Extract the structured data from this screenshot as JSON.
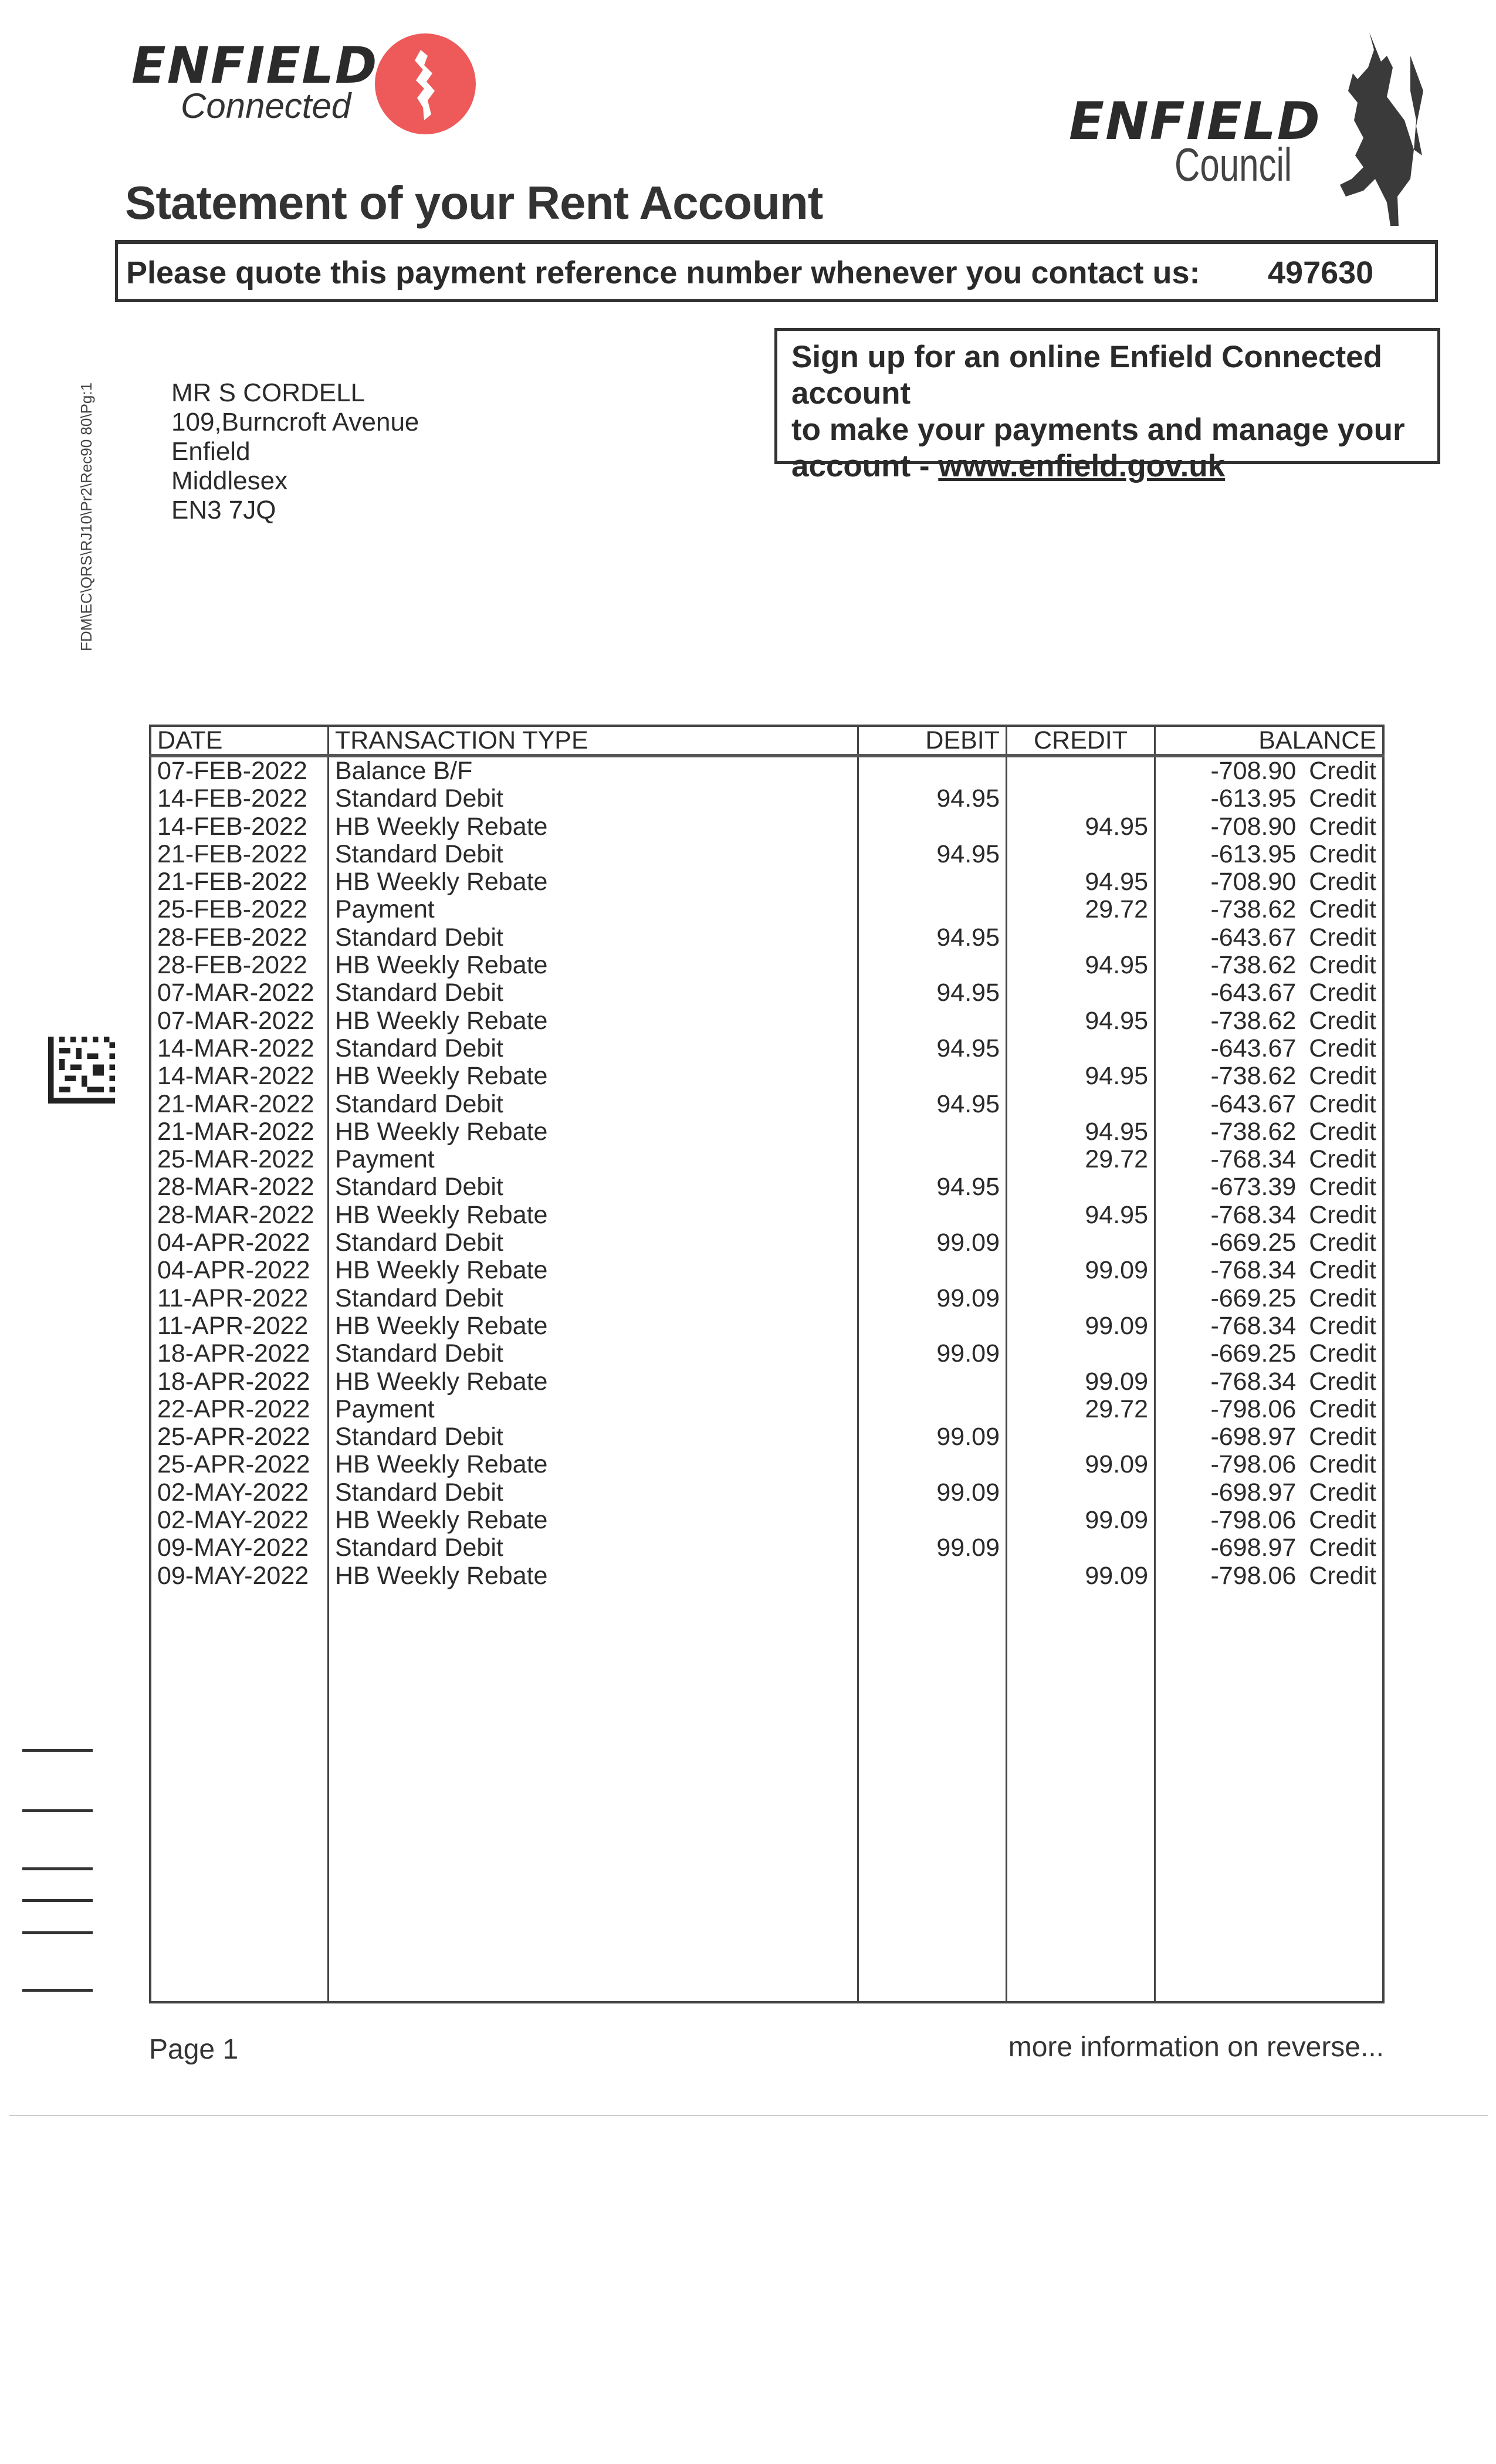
{
  "logos": {
    "connected": {
      "line1": "ENFIELD",
      "line2": "Connected",
      "circle_color": "#ee5a5a"
    },
    "council": {
      "line1": "ENFIELD",
      "line2": "Council"
    }
  },
  "title": "Statement of your Rent Account",
  "reference": {
    "label": "Please quote this payment reference number whenever you contact us:",
    "number": "497630"
  },
  "signup": {
    "line1": "Sign up for an online Enfield Connected account",
    "line2": "to make your payments and manage your",
    "line3_prefix": "account - ",
    "link": "www.enfield.gov.uk"
  },
  "address": [
    "MR S CORDELL",
    "109,Burncroft Avenue",
    "Enfield",
    "Middlesex",
    "EN3 7JQ"
  ],
  "side_code": "FDM\\EC\\QRS\\RJ10\\Pr2\\Rec90 80\\Pg:1",
  "table": {
    "headers": {
      "date": "DATE",
      "type": "TRANSACTION TYPE",
      "debit": "DEBIT",
      "credit": "CREDIT",
      "balance": "BALANCE"
    },
    "rows": [
      {
        "date": "07-FEB-2022",
        "type": "Balance B/F",
        "debit": "",
        "credit": "",
        "balance": "-708.90",
        "status": "Credit"
      },
      {
        "date": "14-FEB-2022",
        "type": "Standard Debit",
        "debit": "94.95",
        "credit": "",
        "balance": "-613.95",
        "status": "Credit"
      },
      {
        "date": "14-FEB-2022",
        "type": "HB Weekly Rebate",
        "debit": "",
        "credit": "94.95",
        "balance": "-708.90",
        "status": "Credit"
      },
      {
        "date": "21-FEB-2022",
        "type": "Standard Debit",
        "debit": "94.95",
        "credit": "",
        "balance": "-613.95",
        "status": "Credit"
      },
      {
        "date": "21-FEB-2022",
        "type": "HB Weekly Rebate",
        "debit": "",
        "credit": "94.95",
        "balance": "-708.90",
        "status": "Credit"
      },
      {
        "date": "25-FEB-2022",
        "type": "Payment",
        "debit": "",
        "credit": "29.72",
        "balance": "-738.62",
        "status": "Credit"
      },
      {
        "date": "28-FEB-2022",
        "type": "Standard Debit",
        "debit": "94.95",
        "credit": "",
        "balance": "-643.67",
        "status": "Credit"
      },
      {
        "date": "28-FEB-2022",
        "type": "HB Weekly Rebate",
        "debit": "",
        "credit": "94.95",
        "balance": "-738.62",
        "status": "Credit"
      },
      {
        "date": "07-MAR-2022",
        "type": "Standard Debit",
        "debit": "94.95",
        "credit": "",
        "balance": "-643.67",
        "status": "Credit"
      },
      {
        "date": "07-MAR-2022",
        "type": "HB Weekly Rebate",
        "debit": "",
        "credit": "94.95",
        "balance": "-738.62",
        "status": "Credit"
      },
      {
        "date": "14-MAR-2022",
        "type": "Standard Debit",
        "debit": "94.95",
        "credit": "",
        "balance": "-643.67",
        "status": "Credit"
      },
      {
        "date": "14-MAR-2022",
        "type": "HB Weekly Rebate",
        "debit": "",
        "credit": "94.95",
        "balance": "-738.62",
        "status": "Credit"
      },
      {
        "date": "21-MAR-2022",
        "type": "Standard Debit",
        "debit": "94.95",
        "credit": "",
        "balance": "-643.67",
        "status": "Credit"
      },
      {
        "date": "21-MAR-2022",
        "type": "HB Weekly Rebate",
        "debit": "",
        "credit": "94.95",
        "balance": "-738.62",
        "status": "Credit"
      },
      {
        "date": "25-MAR-2022",
        "type": "Payment",
        "debit": "",
        "credit": "29.72",
        "balance": "-768.34",
        "status": "Credit"
      },
      {
        "date": "28-MAR-2022",
        "type": "Standard Debit",
        "debit": "94.95",
        "credit": "",
        "balance": "-673.39",
        "status": "Credit"
      },
      {
        "date": "28-MAR-2022",
        "type": "HB Weekly Rebate",
        "debit": "",
        "credit": "94.95",
        "balance": "-768.34",
        "status": "Credit"
      },
      {
        "date": "04-APR-2022",
        "type": "Standard Debit",
        "debit": "99.09",
        "credit": "",
        "balance": "-669.25",
        "status": "Credit"
      },
      {
        "date": "04-APR-2022",
        "type": "HB Weekly Rebate",
        "debit": "",
        "credit": "99.09",
        "balance": "-768.34",
        "status": "Credit"
      },
      {
        "date": "11-APR-2022",
        "type": "Standard Debit",
        "debit": "99.09",
        "credit": "",
        "balance": "-669.25",
        "status": "Credit"
      },
      {
        "date": "11-APR-2022",
        "type": "HB Weekly Rebate",
        "debit": "",
        "credit": "99.09",
        "balance": "-768.34",
        "status": "Credit"
      },
      {
        "date": "18-APR-2022",
        "type": "Standard Debit",
        "debit": "99.09",
        "credit": "",
        "balance": "-669.25",
        "status": "Credit"
      },
      {
        "date": "18-APR-2022",
        "type": "HB Weekly Rebate",
        "debit": "",
        "credit": "99.09",
        "balance": "-768.34",
        "status": "Credit"
      },
      {
        "date": "22-APR-2022",
        "type": "Payment",
        "debit": "",
        "credit": "29.72",
        "balance": "-798.06",
        "status": "Credit"
      },
      {
        "date": "25-APR-2022",
        "type": "Standard Debit",
        "debit": "99.09",
        "credit": "",
        "balance": "-698.97",
        "status": "Credit"
      },
      {
        "date": "25-APR-2022",
        "type": "HB Weekly Rebate",
        "debit": "",
        "credit": "99.09",
        "balance": "-798.06",
        "status": "Credit"
      },
      {
        "date": "02-MAY-2022",
        "type": "Standard Debit",
        "debit": "99.09",
        "credit": "",
        "balance": "-698.97",
        "status": "Credit"
      },
      {
        "date": "02-MAY-2022",
        "type": "HB Weekly Rebate",
        "debit": "",
        "credit": "99.09",
        "balance": "-798.06",
        "status": "Credit"
      },
      {
        "date": "09-MAY-2022",
        "type": "Standard Debit",
        "debit": "99.09",
        "credit": "",
        "balance": "-698.97",
        "status": "Credit"
      },
      {
        "date": "09-MAY-2022",
        "type": "HB Weekly Rebate",
        "debit": "",
        "credit": "99.09",
        "balance": "-798.06",
        "status": "Credit"
      }
    ]
  },
  "footer": {
    "page": "Page 1",
    "more": "more information on reverse..."
  }
}
